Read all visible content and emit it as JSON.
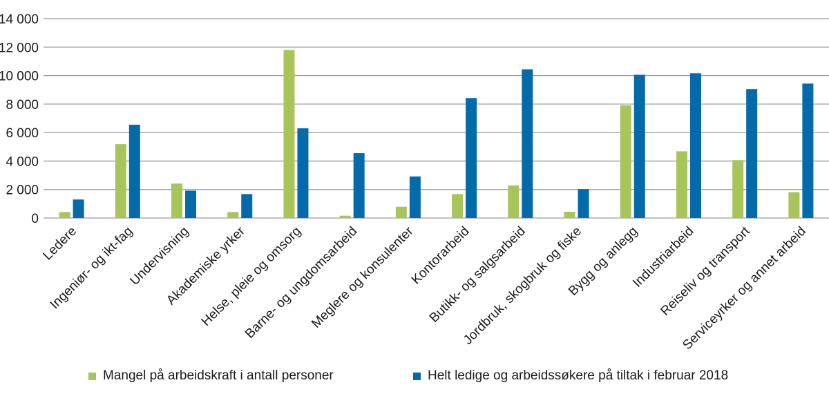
{
  "chart_data": {
    "type": "bar",
    "title": "",
    "xlabel": "",
    "ylabel": "",
    "ylim": [
      0,
      14000
    ],
    "yticks": [
      0,
      2000,
      4000,
      6000,
      8000,
      10000,
      12000,
      14000
    ],
    "ytick_labels": [
      "0",
      "2 000",
      "4 000",
      "6 000",
      "8 000",
      "10 000",
      "12 000",
      "14 000"
    ],
    "grid": true,
    "legend_position": "bottom",
    "categories": [
      "Ledere",
      "Ingeniør- og ikt-fag",
      "Undervisning",
      "Akademiske yrker",
      "Helse, pleie og omsorg",
      "Barne- og ungdomsarbeid",
      "Meglere og konsulenter",
      "Kontorarbeid",
      "Butikk- og salgsarbeid",
      "Jordbruk, skogbruk og fiske",
      "Bygg og anlegg",
      "Industriarbeid",
      "Reiseliv og transport",
      "Serviceyrker og annet arbeid"
    ],
    "series": [
      {
        "name": "Mangel på arbeidskraft i antall personer",
        "color": "#a8c55a",
        "values": [
          420,
          5180,
          2420,
          420,
          11800,
          160,
          790,
          1680,
          2290,
          440,
          7920,
          4680,
          4060,
          1810
        ]
      },
      {
        "name": "Helt ledige og arbeidssøkere på tiltak i februar 2018",
        "color": "#046aaa",
        "values": [
          1300,
          6550,
          1920,
          1680,
          6300,
          4550,
          2920,
          8420,
          10440,
          2030,
          10060,
          10160,
          9050,
          9440
        ]
      }
    ]
  }
}
